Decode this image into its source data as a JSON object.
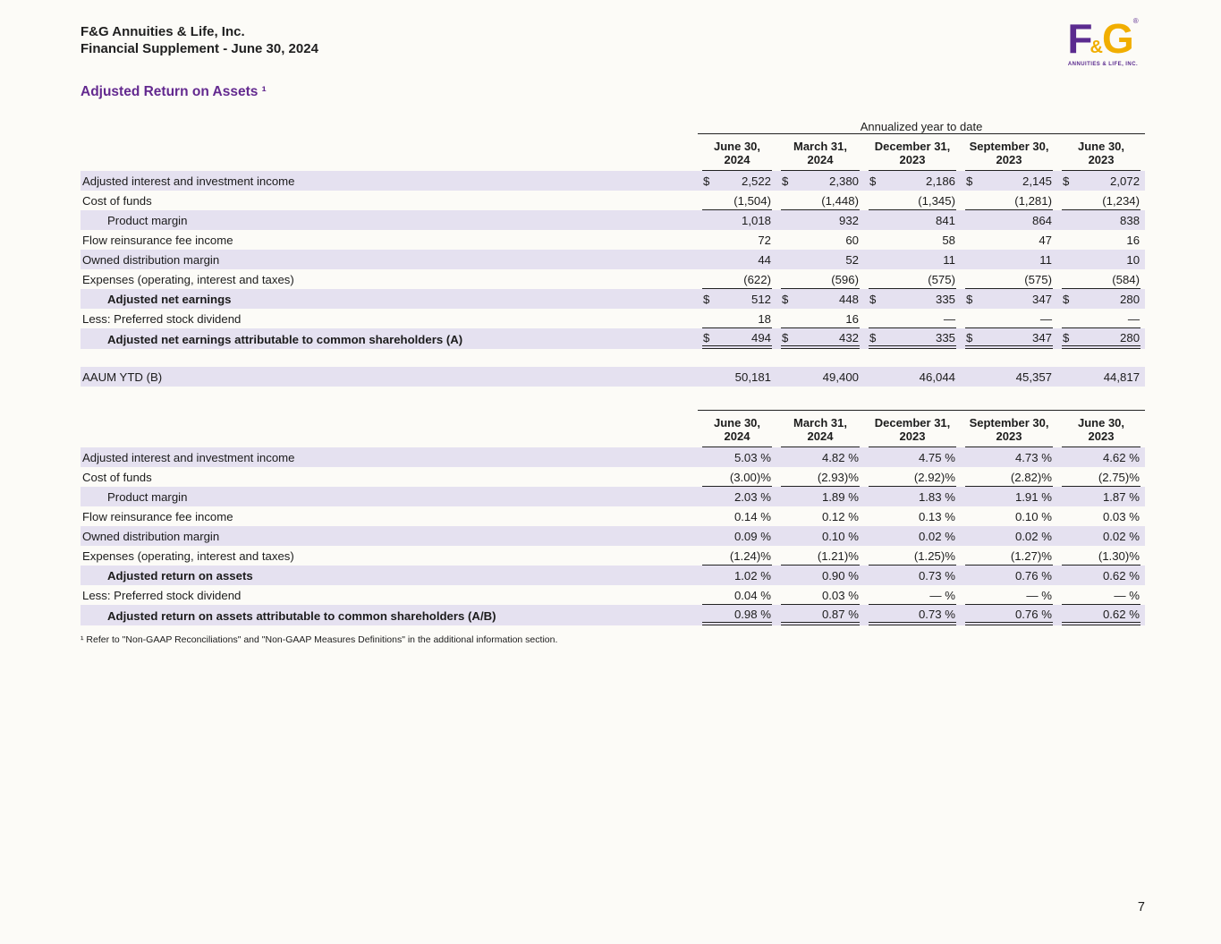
{
  "header": {
    "company": "F&G Annuities & Life, Inc.",
    "subtitle": "Financial Supplement - June 30, 2024",
    "logo": {
      "f": "F",
      "amp": "&",
      "g": "G",
      "reg": "®",
      "sub": "ANNUITIES & LIFE, INC."
    }
  },
  "page_title": "Adjusted Return on Assets ¹",
  "footnote": "¹ Refer to \"Non-GAAP Reconciliations\" and \"Non-GAAP Measures Definitions\" in the additional information section.",
  "page_number": "7",
  "colors": {
    "accent_purple": "#63298f",
    "logo_purple": "#5b2b8f",
    "logo_gold": "#f1ae00",
    "row_shade": "#e5e1f0"
  },
  "table1": {
    "group_header": "Annualized year to date",
    "currency": "$",
    "columns": [
      "June 30,\n2024",
      "March 31,\n2024",
      "December 31,\n2023",
      "September 30,\n2023",
      "June 30,\n2023"
    ],
    "rows": [
      {
        "label": "Adjusted interest and investment income",
        "indent": 0,
        "shaded": true,
        "dollar": true,
        "values": [
          "2,522",
          "2,380",
          "2,186",
          "2,145",
          "2,072"
        ]
      },
      {
        "label": "Cost of funds",
        "indent": 0,
        "shaded": false,
        "underline": true,
        "values": [
          "(1,504)",
          "(1,448)",
          "(1,345)",
          "(1,281)",
          "(1,234)"
        ]
      },
      {
        "label": "Product margin",
        "indent": 1,
        "shaded": true,
        "values": [
          "1,018",
          "932",
          "841",
          "864",
          "838"
        ]
      },
      {
        "label": "Flow reinsurance fee income",
        "indent": 0,
        "shaded": false,
        "values": [
          "72",
          "60",
          "58",
          "47",
          "16"
        ]
      },
      {
        "label": "Owned distribution margin",
        "indent": 0,
        "shaded": true,
        "values": [
          "44",
          "52",
          "11",
          "11",
          "10"
        ]
      },
      {
        "label": "Expenses (operating, interest and taxes)",
        "indent": 0,
        "shaded": false,
        "underline": true,
        "values": [
          "(622)",
          "(596)",
          "(575)",
          "(575)",
          "(584)"
        ]
      },
      {
        "label": "Adjusted net earnings",
        "indent": 1,
        "bold": true,
        "shaded": true,
        "dollar": true,
        "values": [
          "512",
          "448",
          "335",
          "347",
          "280"
        ]
      },
      {
        "label": "Less: Preferred stock dividend",
        "indent": 0,
        "shaded": false,
        "underline": true,
        "values": [
          "18",
          "16",
          "—",
          "—",
          "—"
        ]
      },
      {
        "label": "Adjusted net earnings attributable to common shareholders (A)",
        "indent": 1,
        "bold": true,
        "shaded": true,
        "dollar": true,
        "double_underline": true,
        "values": [
          "494",
          "432",
          "335",
          "347",
          "280"
        ]
      },
      {
        "label": "AAUM YTD (B)",
        "indent": 0,
        "shaded": true,
        "spacer_before": true,
        "values": [
          "50,181",
          "49,400",
          "46,044",
          "45,357",
          "44,817"
        ]
      }
    ]
  },
  "table2": {
    "columns": [
      "June 30,\n2024",
      "March 31,\n2024",
      "December 31,\n2023",
      "September 30,\n2023",
      "June 30,\n2023"
    ],
    "rows": [
      {
        "label": "Adjusted interest and investment income",
        "indent": 0,
        "shaded": true,
        "values": [
          "5.03 %",
          "4.82 %",
          "4.75 %",
          "4.73 %",
          "4.62 %"
        ]
      },
      {
        "label": "Cost of funds",
        "indent": 0,
        "shaded": false,
        "underline": true,
        "values": [
          "(3.00)%",
          "(2.93)%",
          "(2.92)%",
          "(2.82)%",
          "(2.75)%"
        ]
      },
      {
        "label": "Product margin",
        "indent": 1,
        "shaded": true,
        "values": [
          "2.03 %",
          "1.89 %",
          "1.83 %",
          "1.91 %",
          "1.87 %"
        ]
      },
      {
        "label": "Flow reinsurance fee income",
        "indent": 0,
        "shaded": false,
        "values": [
          "0.14 %",
          "0.12 %",
          "0.13 %",
          "0.10 %",
          "0.03 %"
        ]
      },
      {
        "label": "Owned distribution margin",
        "indent": 0,
        "shaded": true,
        "values": [
          "0.09 %",
          "0.10 %",
          "0.02 %",
          "0.02 %",
          "0.02 %"
        ]
      },
      {
        "label": "Expenses (operating, interest and taxes)",
        "indent": 0,
        "shaded": false,
        "underline": true,
        "values": [
          "(1.24)%",
          "(1.21)%",
          "(1.25)%",
          "(1.27)%",
          "(1.30)%"
        ]
      },
      {
        "label": "Adjusted return on assets",
        "indent": 1,
        "bold": true,
        "shaded": true,
        "values": [
          "1.02 %",
          "0.90 %",
          "0.73 %",
          "0.76 %",
          "0.62 %"
        ]
      },
      {
        "label": "Less: Preferred stock dividend",
        "indent": 0,
        "shaded": false,
        "underline": true,
        "values": [
          "0.04 %",
          "0.03 %",
          "— %",
          "— %",
          "— %"
        ]
      },
      {
        "label": "Adjusted return on assets attributable to common shareholders (A/B)",
        "indent": 1,
        "bold": true,
        "shaded": true,
        "double_underline": true,
        "values": [
          "0.98 %",
          "0.87 %",
          "0.73 %",
          "0.76 %",
          "0.62 %"
        ]
      }
    ]
  }
}
